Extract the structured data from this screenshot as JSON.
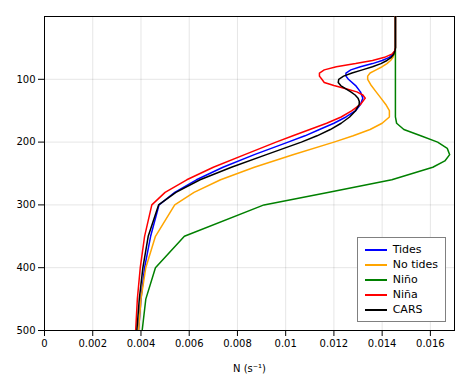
{
  "chart_data": {
    "type": "line",
    "xlabel": "N (s⁻¹)",
    "xlim": [
      0.0,
      0.017
    ],
    "ylim": [
      500,
      0
    ],
    "xticks": [
      0.0,
      0.002,
      0.004,
      0.006,
      0.008,
      0.01,
      0.012,
      0.014,
      0.016
    ],
    "yticks": [
      100,
      200,
      300,
      400,
      500
    ],
    "grid": true,
    "legend": "lower right",
    "series": [
      {
        "name": "Tides",
        "color": "blue",
        "x": [
          0.01455,
          0.01455,
          0.01455,
          0.01455,
          0.01455,
          0.01455,
          0.01452,
          0.01445,
          0.0143,
          0.014,
          0.0136,
          0.0131,
          0.0127,
          0.0125,
          0.0125,
          0.0126,
          0.0129,
          0.0131,
          0.0132,
          0.0131,
          0.0129,
          0.0125,
          0.012,
          0.0114,
          0.0108,
          0.0101,
          0.0087,
          0.0074,
          0.0063,
          0.0054,
          0.00475,
          0.0044,
          0.00415,
          0.004,
          0.0039
        ],
        "values": [
          0,
          10,
          20,
          30,
          40,
          50,
          55,
          60,
          65,
          70,
          75,
          80,
          85,
          90,
          95,
          100,
          110,
          120,
          130,
          140,
          150,
          160,
          170,
          180,
          190,
          200,
          220,
          240,
          260,
          280,
          300,
          350,
          400,
          450,
          500
        ]
      },
      {
        "name": "No tides",
        "color": "orange",
        "x": [
          0.01455,
          0.01455,
          0.01455,
          0.01455,
          0.01455,
          0.01455,
          0.01453,
          0.0145,
          0.01445,
          0.01435,
          0.0142,
          0.014,
          0.01375,
          0.0135,
          0.0134,
          0.0134,
          0.01355,
          0.01375,
          0.01395,
          0.01415,
          0.0143,
          0.0143,
          0.014,
          0.0135,
          0.0128,
          0.012,
          0.0103,
          0.0087,
          0.0073,
          0.0062,
          0.0054,
          0.0046,
          0.0042,
          0.004,
          0.0039
        ],
        "values": [
          0,
          10,
          20,
          30,
          40,
          50,
          55,
          60,
          65,
          70,
          75,
          80,
          85,
          90,
          95,
          100,
          110,
          120,
          130,
          140,
          150,
          160,
          170,
          180,
          190,
          200,
          220,
          240,
          260,
          280,
          300,
          350,
          400,
          450,
          500
        ]
      },
      {
        "name": "Niño",
        "color": "green",
        "x": [
          0.01455,
          0.01455,
          0.01455,
          0.01455,
          0.01455,
          0.01455,
          0.01455,
          0.01455,
          0.01455,
          0.01455,
          0.01455,
          0.01455,
          0.01455,
          0.01455,
          0.01455,
          0.01455,
          0.01455,
          0.0146,
          0.0149,
          0.0156,
          0.0163,
          0.0167,
          0.0168,
          0.0166,
          0.0161,
          0.0144,
          0.0118,
          0.0091,
          0.0058,
          0.0046,
          0.0042,
          0.00405
        ],
        "values": [
          0,
          10,
          20,
          30,
          40,
          50,
          60,
          70,
          80,
          90,
          100,
          110,
          120,
          130,
          140,
          150,
          160,
          170,
          180,
          190,
          200,
          210,
          220,
          230,
          240,
          260,
          280,
          300,
          350,
          400,
          450,
          500
        ]
      },
      {
        "name": "Niña",
        "color": "red",
        "x": [
          0.01455,
          0.01455,
          0.01455,
          0.01455,
          0.01455,
          0.01455,
          0.01452,
          0.0144,
          0.0141,
          0.0136,
          0.0129,
          0.0121,
          0.0116,
          0.0114,
          0.0114,
          0.0115,
          0.0116,
          0.012,
          0.0125,
          0.01295,
          0.0132,
          0.0133,
          0.0131,
          0.01275,
          0.0123,
          0.0117,
          0.011,
          0.0103,
          0.0096,
          0.0083,
          0.007,
          0.0059,
          0.005,
          0.00445,
          0.00415,
          0.00397,
          0.00385,
          0.00378
        ],
        "values": [
          0,
          10,
          20,
          30,
          40,
          50,
          55,
          60,
          65,
          70,
          75,
          80,
          85,
          90,
          95,
          100,
          105,
          110,
          115,
          120,
          125,
          130,
          140,
          150,
          160,
          170,
          180,
          190,
          200,
          220,
          240,
          260,
          280,
          300,
          350,
          400,
          450,
          500
        ]
      },
      {
        "name": "CARS",
        "color": "black",
        "x": [
          0.01455,
          0.01455,
          0.01455,
          0.01455,
          0.01455,
          0.01455,
          0.01453,
          0.01448,
          0.01438,
          0.0142,
          0.01395,
          0.0136,
          0.01318,
          0.01275,
          0.0124,
          0.0122,
          0.01218,
          0.01228,
          0.01248,
          0.0127,
          0.01288,
          0.013,
          0.01305,
          0.01305,
          0.0129,
          0.01265,
          0.0123,
          0.01185,
          0.0113,
          0.01065,
          0.0092,
          0.00775,
          0.00645,
          0.00545,
          0.00473,
          0.0043,
          0.00408,
          0.00393,
          0.00383
        ],
        "values": [
          0,
          10,
          20,
          30,
          40,
          50,
          55,
          60,
          65,
          70,
          75,
          80,
          85,
          90,
          95,
          100,
          105,
          110,
          115,
          120,
          125,
          130,
          135,
          140,
          150,
          160,
          170,
          180,
          190,
          200,
          220,
          240,
          260,
          280,
          300,
          350,
          400,
          450,
          500
        ]
      }
    ]
  }
}
